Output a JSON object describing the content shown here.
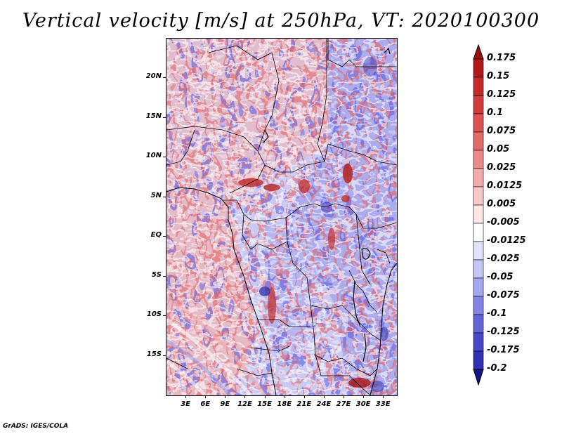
{
  "title": "Vertical velocity [m/s] at 250hPa, VT: 2020100300",
  "credit": "GrADS: IGES/COLA",
  "map": {
    "lon_range": [
      0,
      35
    ],
    "lat_range": [
      -20,
      25
    ],
    "y_ticks": [
      {
        "label": "20N",
        "lat": 20
      },
      {
        "label": "15N",
        "lat": 15
      },
      {
        "label": "10N",
        "lat": 10
      },
      {
        "label": "5N",
        "lat": 5
      },
      {
        "label": "EQ",
        "lat": 0
      },
      {
        "label": "5S",
        "lat": -5
      },
      {
        "label": "10S",
        "lat": -10
      },
      {
        "label": "15S",
        "lat": -15
      }
    ],
    "x_ticks": [
      {
        "label": "3E",
        "lon": 3
      },
      {
        "label": "6E",
        "lon": 6
      },
      {
        "label": "9E",
        "lon": 9
      },
      {
        "label": "12E",
        "lon": 12
      },
      {
        "label": "15E",
        "lon": 15
      },
      {
        "label": "18E",
        "lon": 18
      },
      {
        "label": "21E",
        "lon": 21
      },
      {
        "label": "24E",
        "lon": 24
      },
      {
        "label": "27E",
        "lon": 27
      },
      {
        "label": "30E",
        "lon": 30
      },
      {
        "label": "33E",
        "lon": 33
      }
    ]
  },
  "colorbar": {
    "levels": [
      {
        "label": "0.175",
        "color": "#b01818"
      },
      {
        "label": "0.15",
        "color": "#c42a2a"
      },
      {
        "label": "0.125",
        "color": "#d23c3c"
      },
      {
        "label": "0.1",
        "color": "#dc5252"
      },
      {
        "label": "0.075",
        "color": "#e46a6a"
      },
      {
        "label": "0.05",
        "color": "#ec8a8a"
      },
      {
        "label": "0.025",
        "color": "#f4aaaa"
      },
      {
        "label": "0.0125",
        "color": "#f8c8c8"
      },
      {
        "label": "0.005",
        "color": "#fce6e6"
      },
      {
        "label": "-0.005",
        "color": "#ffffff"
      },
      {
        "label": "-0.0125",
        "color": "#e2e2fc"
      },
      {
        "label": "-0.025",
        "color": "#c6c6f6"
      },
      {
        "label": "-0.05",
        "color": "#a6a6f0"
      },
      {
        "label": "-0.075",
        "color": "#8484e6"
      },
      {
        "label": "-0.1",
        "color": "#6464da"
      },
      {
        "label": "-0.125",
        "color": "#4848c8"
      },
      {
        "label": "-0.175",
        "color": "#3030b4"
      },
      {
        "label": "-0.2",
        "color": "#1e1e9a"
      }
    ],
    "top_arrow_color": "#9a1010",
    "bottom_arrow_color": "#14148a"
  }
}
